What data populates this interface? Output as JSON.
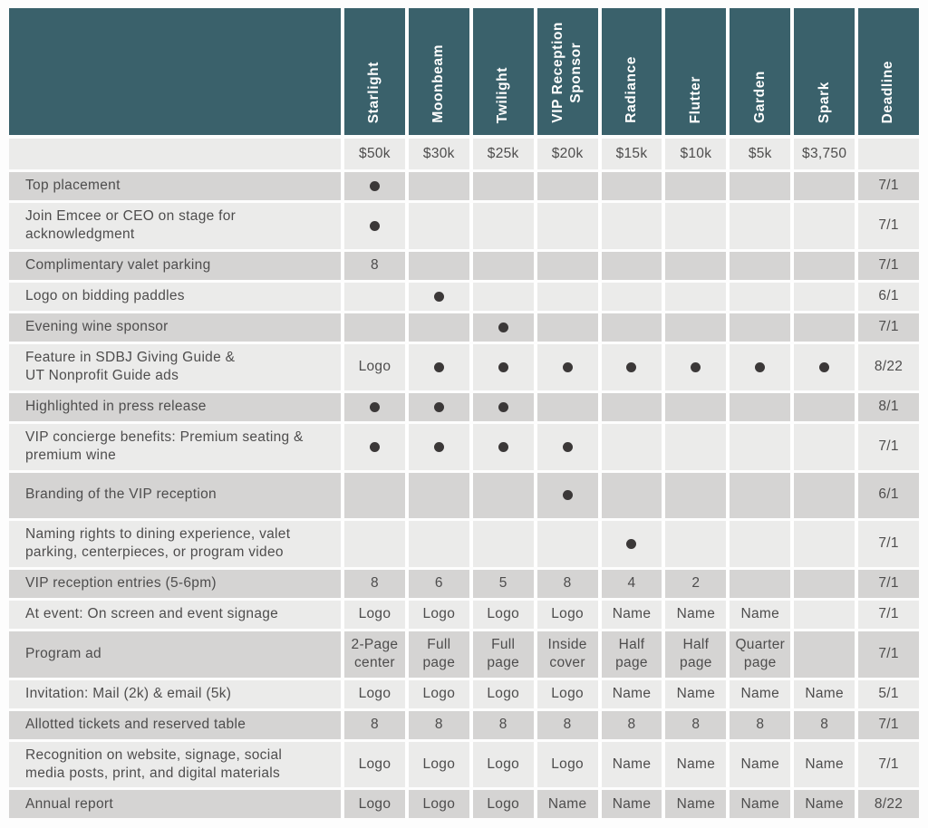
{
  "table": {
    "colors": {
      "header_bg": "#3a616b",
      "row_dark": "#d5d4d3",
      "row_light": "#ebebea",
      "dot": "#3b3838",
      "text": "#4e4d4d"
    },
    "columns": [
      "Starlight",
      "Moonbeam",
      "Twilight",
      "VIP Reception\nSponsor",
      "Radiance",
      "Flutter",
      "Garden",
      "Spark",
      "Deadline"
    ],
    "prices": [
      "$50k",
      "$30k",
      "$25k",
      "$20k",
      "$15k",
      "$10k",
      "$5k",
      "$3,750",
      ""
    ],
    "rows": [
      {
        "label": "Top placement",
        "cells": [
          "dot",
          "",
          "",
          "",
          "",
          "",
          "",
          ""
        ],
        "deadline": "7/1"
      },
      {
        "label": "Join Emcee or CEO on stage for\nacknowledgment",
        "cells": [
          "dot",
          "",
          "",
          "",
          "",
          "",
          "",
          ""
        ],
        "deadline": "7/1"
      },
      {
        "label": "Complimentary valet parking",
        "cells": [
          "8",
          "",
          "",
          "",
          "",
          "",
          "",
          ""
        ],
        "deadline": "7/1"
      },
      {
        "label": "Logo on bidding paddles",
        "cells": [
          "",
          "dot",
          "",
          "",
          "",
          "",
          "",
          ""
        ],
        "deadline": "6/1"
      },
      {
        "label": "Evening wine sponsor",
        "cells": [
          "",
          "",
          "dot",
          "",
          "",
          "",
          "",
          ""
        ],
        "deadline": "7/1"
      },
      {
        "label": "Feature in SDBJ Giving Guide &\nUT Nonprofit Guide ads",
        "cells": [
          "Logo",
          "dot",
          "dot",
          "dot",
          "dot",
          "dot",
          "dot",
          "dot"
        ],
        "deadline": "8/22"
      },
      {
        "label": "Highlighted in press release",
        "cells": [
          "dot",
          "dot",
          "dot",
          "",
          "",
          "",
          "",
          ""
        ],
        "deadline": "8/1"
      },
      {
        "label": "VIP concierge benefits: Premium seating &\npremium wine",
        "cells": [
          "dot",
          "dot",
          "dot",
          "dot",
          "",
          "",
          "",
          ""
        ],
        "deadline": "7/1"
      },
      {
        "label": "Branding of the VIP reception",
        "cells": [
          "",
          "",
          "",
          "dot",
          "",
          "",
          "",
          ""
        ],
        "deadline": "6/1"
      },
      {
        "label": "Naming rights to dining experience, valet\nparking, centerpieces, or program video",
        "cells": [
          "",
          "",
          "",
          "",
          "dot",
          "",
          "",
          ""
        ],
        "deadline": "7/1"
      },
      {
        "label": "VIP reception entries (5-6pm)",
        "cells": [
          "8",
          "6",
          "5",
          "8",
          "4",
          "2",
          "",
          ""
        ],
        "deadline": "7/1"
      },
      {
        "label": "At event: On screen and event signage",
        "cells": [
          "Logo",
          "Logo",
          "Logo",
          "Logo",
          "Name",
          "Name",
          "Name",
          ""
        ],
        "deadline": "7/1"
      },
      {
        "label": "Program ad",
        "cells": [
          "2-Page\ncenter",
          "Full\npage",
          "Full\npage",
          "Inside\ncover",
          "Half\npage",
          "Half\npage",
          "Quarter\npage",
          ""
        ],
        "deadline": "7/1"
      },
      {
        "label": "Invitation: Mail (2k) & email (5k)",
        "cells": [
          "Logo",
          "Logo",
          "Logo",
          "Logo",
          "Name",
          "Name",
          "Name",
          "Name"
        ],
        "deadline": "5/1"
      },
      {
        "label": "Allotted tickets and reserved table",
        "cells": [
          "8",
          "8",
          "8",
          "8",
          "8",
          "8",
          "8",
          "8"
        ],
        "deadline": "7/1"
      },
      {
        "label": "Recognition on website, signage, social\nmedia posts, print, and digital materials",
        "cells": [
          "Logo",
          "Logo",
          "Logo",
          "Logo",
          "Name",
          "Name",
          "Name",
          "Name"
        ],
        "deadline": "7/1"
      },
      {
        "label": "Annual report",
        "cells": [
          "Logo",
          "Logo",
          "Logo",
          "Name",
          "Name",
          "Name",
          "Name",
          "Name"
        ],
        "deadline": "8/22"
      }
    ]
  }
}
